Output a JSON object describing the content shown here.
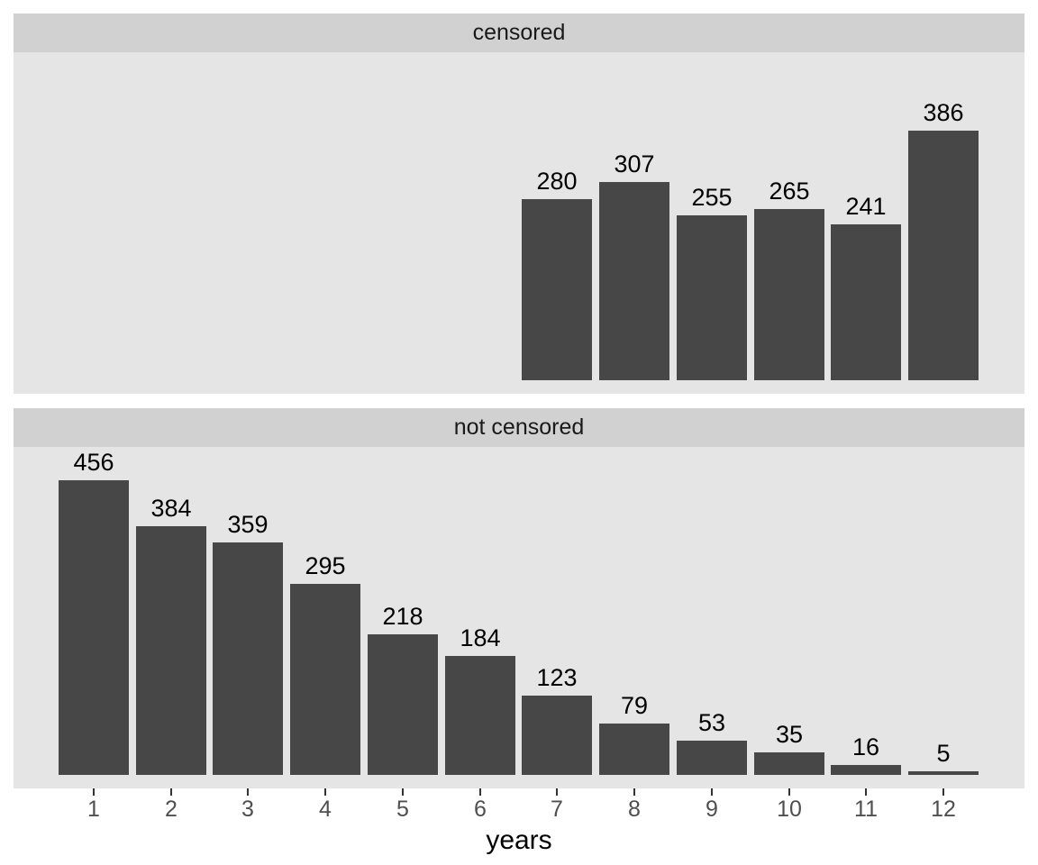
{
  "chart_data": {
    "type": "bar",
    "title": "",
    "xlabel": "years",
    "ylabel": "",
    "grid": false,
    "legend": "none",
    "bar_labels_shown": true,
    "x_domain": [
      1,
      12
    ],
    "ylim": [
      0,
      505
    ],
    "x_tick_labels": [
      "1",
      "2",
      "3",
      "4",
      "5",
      "6",
      "7",
      "8",
      "9",
      "10",
      "11",
      "12"
    ],
    "facets": [
      {
        "label": "censored",
        "x": [
          7,
          8,
          9,
          10,
          11,
          12
        ],
        "values": [
          280,
          307,
          255,
          265,
          241,
          386
        ]
      },
      {
        "label": "not censored",
        "x": [
          1,
          2,
          3,
          4,
          5,
          6,
          7,
          8,
          9,
          10,
          11,
          12
        ],
        "values": [
          456,
          384,
          359,
          295,
          218,
          184,
          123,
          79,
          53,
          35,
          16,
          5
        ]
      }
    ],
    "colors": {
      "bar_fill": "#474747",
      "panel_background": "#e5e5e5",
      "strip_background": "#d1d1d1",
      "strip_text": "#1a1a1a",
      "axis_text": "#4f4f4f",
      "tick_mark": "#333333",
      "bar_label_text": "#000000",
      "axis_title_text": "#000000",
      "page_background": "#ffffff"
    }
  }
}
